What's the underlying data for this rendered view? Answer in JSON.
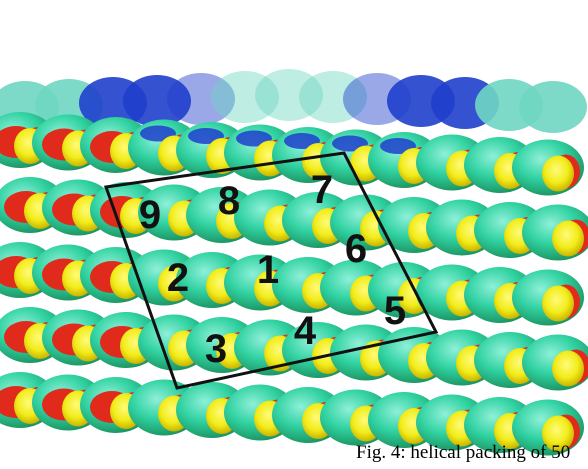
{
  "figure": {
    "caption": "Fig. 4: helical packing of 50",
    "unit_labels": [
      "1",
      "2",
      "3",
      "4",
      "5",
      "6",
      "7",
      "8",
      "9"
    ],
    "colors": {
      "low": "#1f3fcc",
      "mid": "#2fd6b8",
      "high": "#3fc23a",
      "patch_red": "#e02a1c",
      "patch_yellow": "#f2ec1a",
      "frame": "#111111"
    }
  }
}
